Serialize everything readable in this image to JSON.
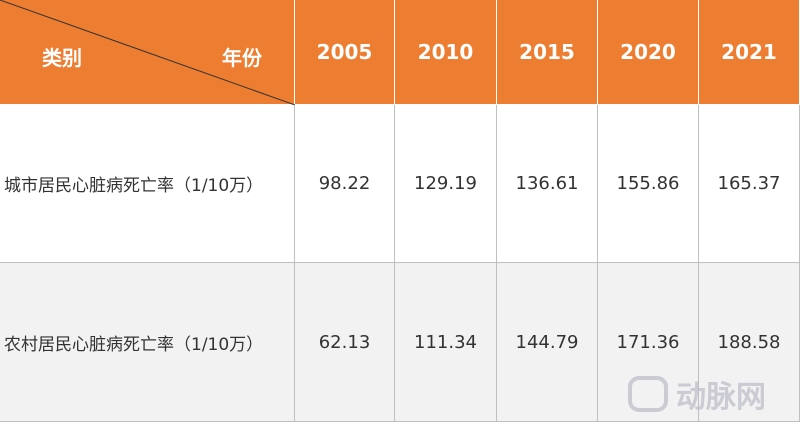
{
  "table": {
    "header": {
      "corner_row": "类别",
      "corner_col": "年份",
      "columns": [
        "2005",
        "2010",
        "2015",
        "2020",
        "2021"
      ]
    },
    "rows": [
      {
        "label": "城市居民心脏病死亡率（1/10万）",
        "values": [
          "98.22",
          "129.19",
          "136.61",
          "155.86",
          "165.37"
        ]
      },
      {
        "label": "农村居民心脏病死亡率（1/10万）",
        "values": [
          "62.13",
          "111.34",
          "144.79",
          "171.36",
          "188.58"
        ]
      }
    ]
  },
  "watermark": "动脉网"
}
